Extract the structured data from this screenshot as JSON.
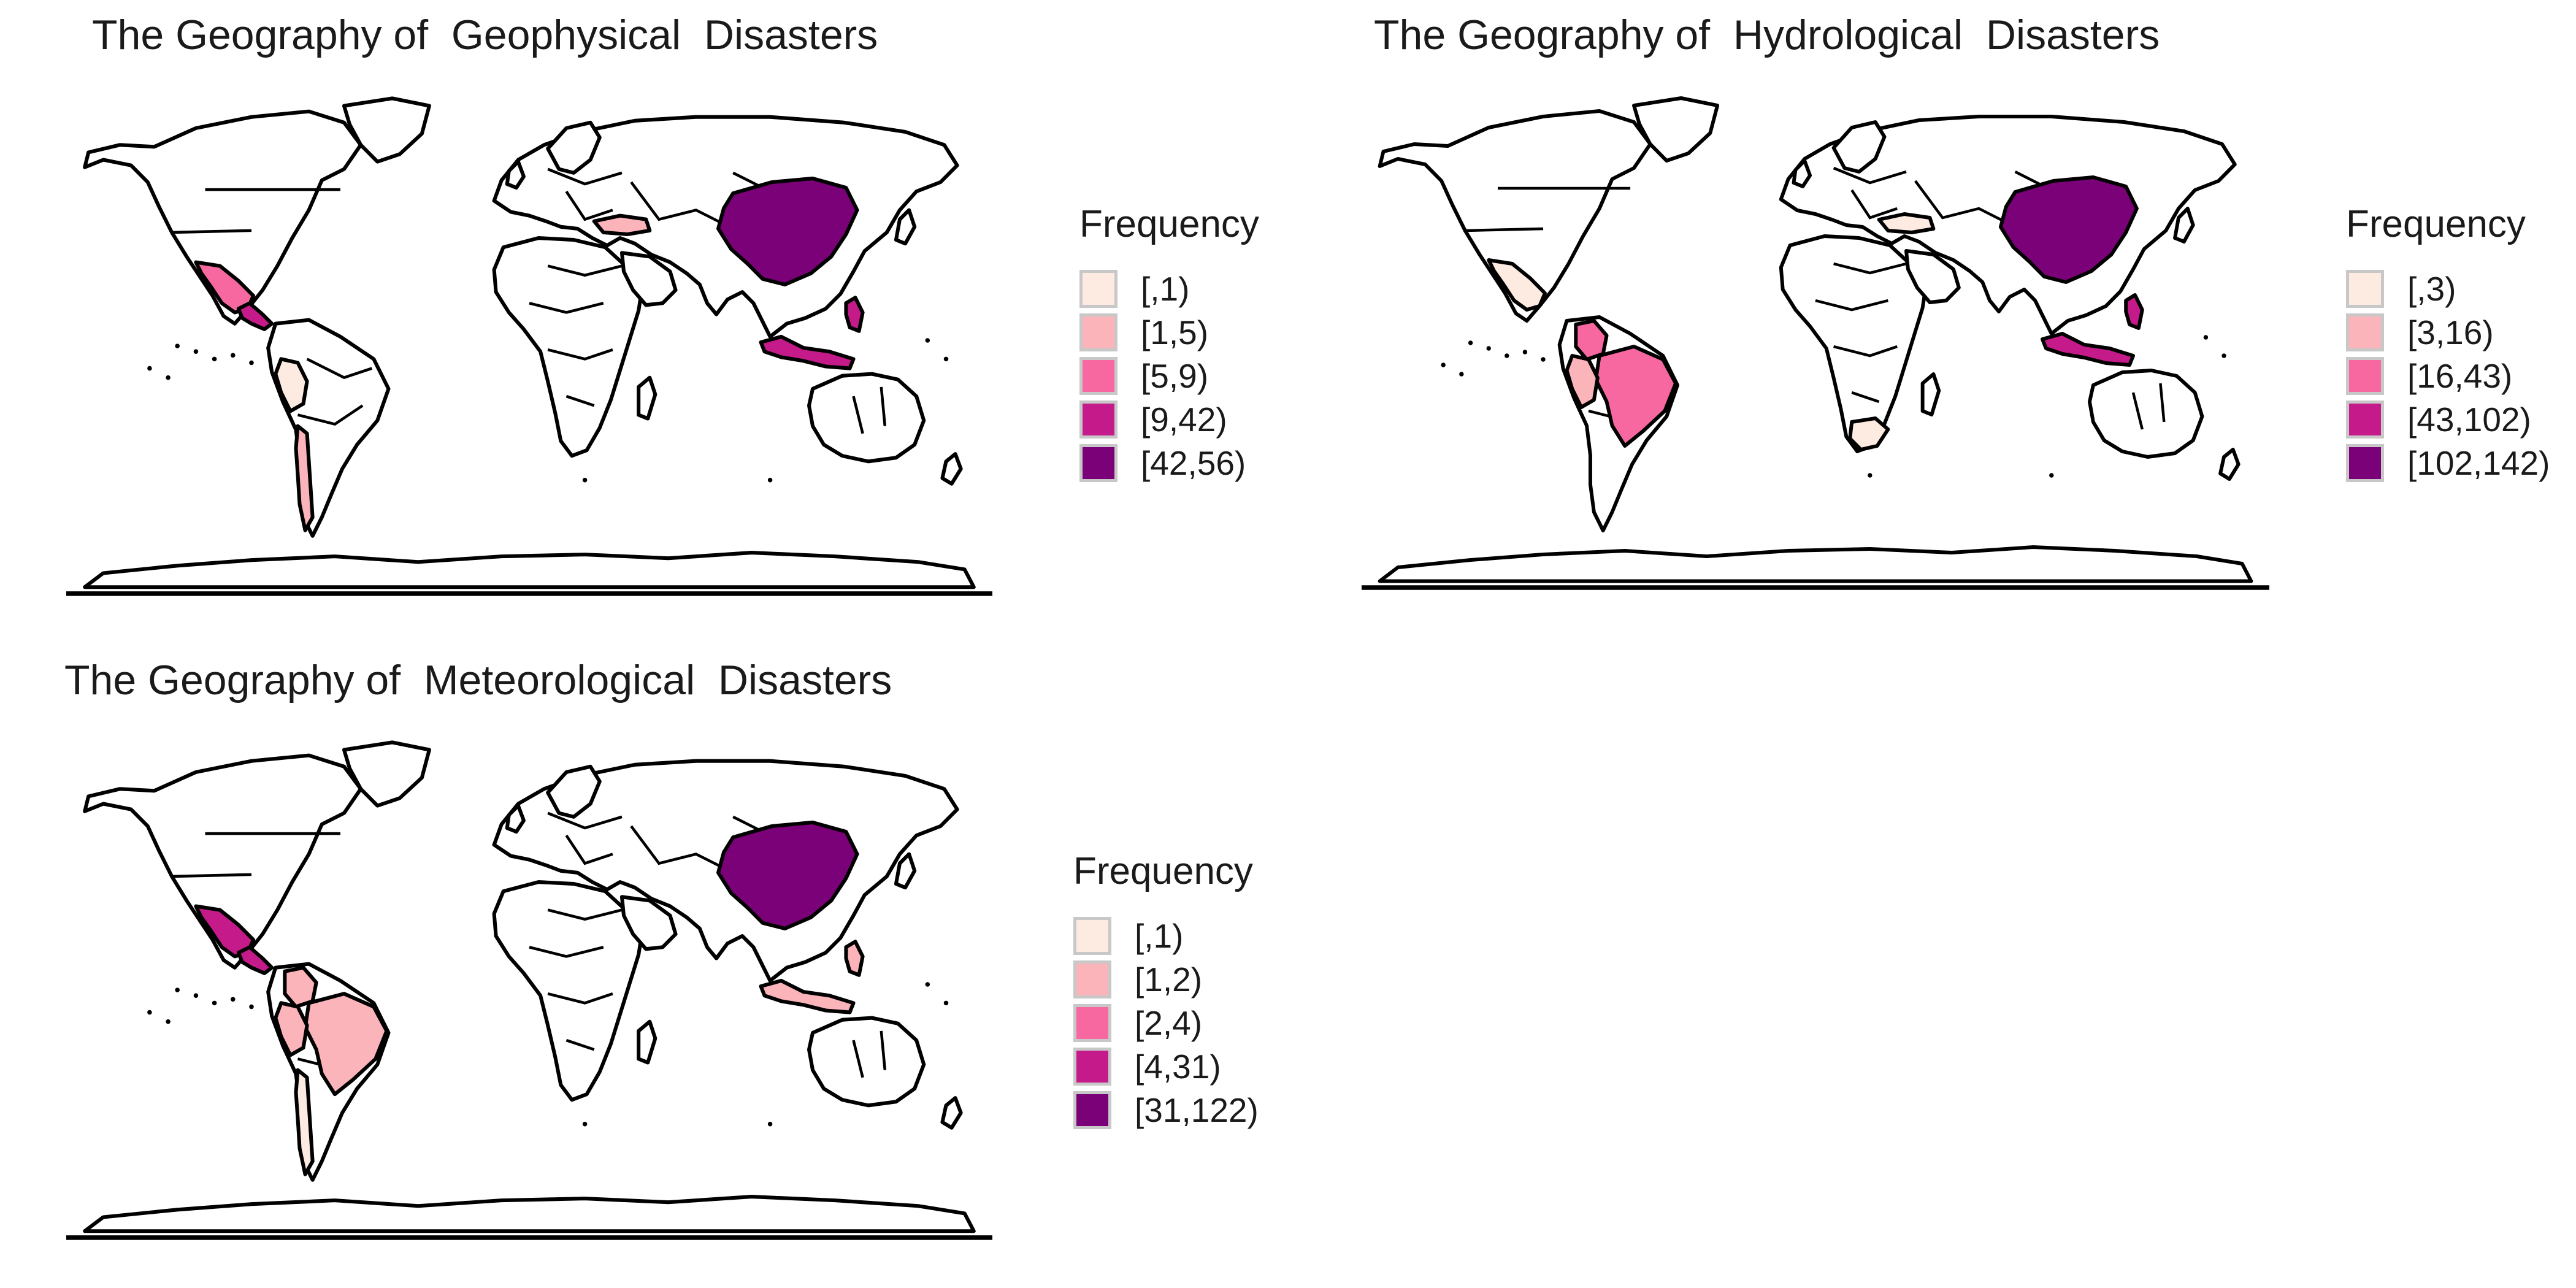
{
  "panels": [
    {
      "title": "The Geography of  Geophysical  Disasters",
      "legend": {
        "title": "Frequency",
        "bins": [
          {
            "label": "[,1)",
            "color": "#fdeae0"
          },
          {
            "label": "[1,5)",
            "color": "#fbb4b9"
          },
          {
            "label": "[5,9)",
            "color": "#f768a1"
          },
          {
            "label": "[9,42)",
            "color": "#c51b8a"
          },
          {
            "label": "[42,56)",
            "color": "#7a0177"
          }
        ]
      },
      "highlighted_regions": [
        {
          "region": "china",
          "bin": 4
        },
        {
          "region": "mexico",
          "bin": 2
        },
        {
          "region": "central-america",
          "bin": 3
        },
        {
          "region": "turkey",
          "bin": 1
        },
        {
          "region": "indonesia",
          "bin": 3
        },
        {
          "region": "philippines",
          "bin": 3
        },
        {
          "region": "peru",
          "bin": 0
        },
        {
          "region": "chile",
          "bin": 1
        }
      ]
    },
    {
      "title": "The Geography of  Hydrological  Disasters",
      "legend": {
        "title": "Frequency",
        "bins": [
          {
            "label": "[,3)",
            "color": "#fdeae0"
          },
          {
            "label": "[3,16)",
            "color": "#fbb4b9"
          },
          {
            "label": "[16,43)",
            "color": "#f768a1"
          },
          {
            "label": "[43,102)",
            "color": "#c51b8a"
          },
          {
            "label": "[102,142)",
            "color": "#7a0177"
          }
        ]
      },
      "highlighted_regions": [
        {
          "region": "china",
          "bin": 4
        },
        {
          "region": "brazil",
          "bin": 2
        },
        {
          "region": "colombia",
          "bin": 2
        },
        {
          "region": "peru",
          "bin": 1
        },
        {
          "region": "mexico",
          "bin": 0
        },
        {
          "region": "indonesia",
          "bin": 3
        },
        {
          "region": "philippines",
          "bin": 3
        },
        {
          "region": "south-africa",
          "bin": 0
        },
        {
          "region": "turkey",
          "bin": 0
        }
      ]
    },
    {
      "title": "The Geography of  Meteorological  Disasters",
      "legend": {
        "title": "Frequency",
        "bins": [
          {
            "label": "[,1)",
            "color": "#fdeae0"
          },
          {
            "label": "[1,2)",
            "color": "#fbb4b9"
          },
          {
            "label": "[2,4)",
            "color": "#f768a1"
          },
          {
            "label": "[4,31)",
            "color": "#c51b8a"
          },
          {
            "label": "[31,122)",
            "color": "#7a0177"
          }
        ]
      },
      "highlighted_regions": [
        {
          "region": "china",
          "bin": 4
        },
        {
          "region": "mexico",
          "bin": 3
        },
        {
          "region": "central-america",
          "bin": 3
        },
        {
          "region": "brazil",
          "bin": 1
        },
        {
          "region": "colombia",
          "bin": 1
        },
        {
          "region": "peru",
          "bin": 1
        },
        {
          "region": "indonesia",
          "bin": 1
        },
        {
          "region": "philippines",
          "bin": 1
        },
        {
          "region": "chile",
          "bin": 0
        }
      ]
    }
  ]
}
